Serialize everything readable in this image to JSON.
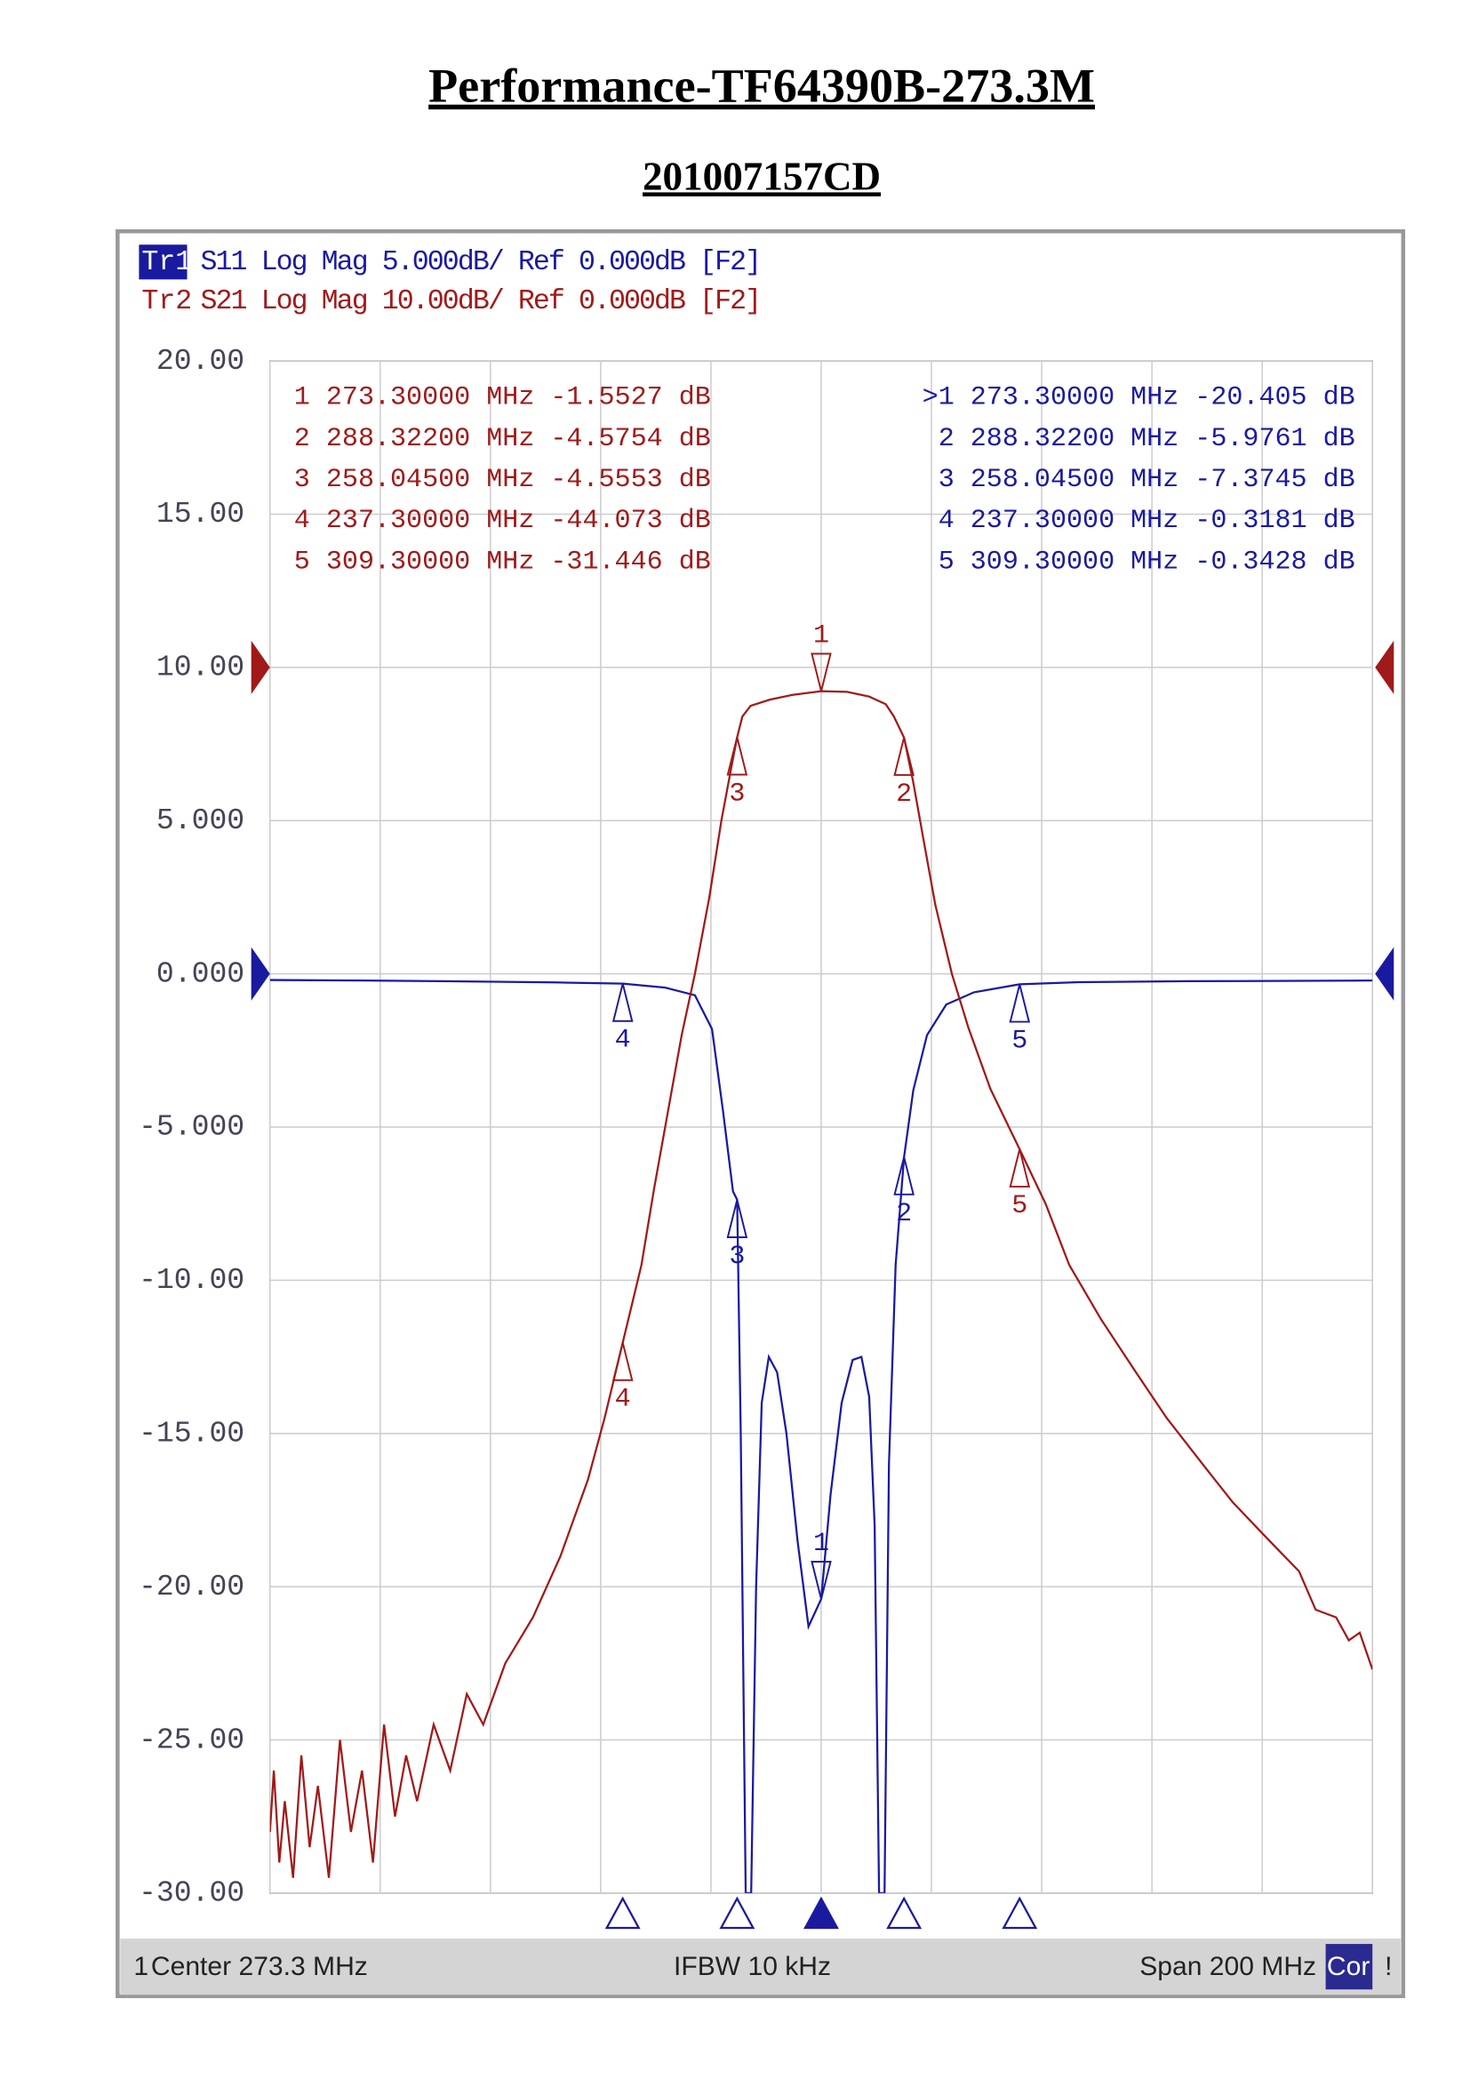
{
  "chart_data": {
    "type": "line",
    "title": "Performance-TF64390B-273.3M",
    "subtitle": "201007157CD",
    "xlim": [
      173.3,
      373.3
    ],
    "xticks": [
      173.3,
      193.3,
      213.3,
      233.3,
      253.3,
      273.3,
      293.3,
      313.3,
      333.3,
      353.3,
      373.3
    ],
    "ylim": [
      -30,
      20
    ],
    "yticks": [
      {
        "value": 20,
        "label": "20.00"
      },
      {
        "value": 15,
        "label": "15.00"
      },
      {
        "value": 10,
        "label": "10.00"
      },
      {
        "value": 5,
        "label": "5.000"
      },
      {
        "value": 0,
        "label": "0.000"
      },
      {
        "value": -5,
        "label": "-5.000"
      },
      {
        "value": -10,
        "label": "-10.00"
      },
      {
        "value": -15,
        "label": "-15.00"
      },
      {
        "value": -20,
        "label": "-20.00"
      },
      {
        "value": -25,
        "label": "-25.00"
      },
      {
        "value": -30,
        "label": "-30.00"
      }
    ],
    "y2lim": [
      -80,
      20
    ],
    "grid": true,
    "series": [
      {
        "name": "Tr1",
        "format": "S11 Log Mag 5.000dB/ Ref 0.000dB [F2]",
        "color": "#1a1aa0",
        "ref": 0,
        "x": [
          173.3,
          190,
          210,
          225,
          237.3,
          245,
          250.4,
          253.5,
          255.5,
          257.3,
          258.05,
          258.7,
          259.6,
          260.6,
          261.5,
          262.5,
          263.8,
          265.3,
          267,
          269,
          271,
          273.3,
          275,
          277,
          279,
          280.6,
          282,
          283,
          283.8,
          284.8,
          285.6,
          286.8,
          288.32,
          290,
          292.5,
          296,
          301,
          309.3,
          320,
          340,
          373.3
        ],
        "values": [
          -0.2,
          -0.22,
          -0.25,
          -0.28,
          -0.32,
          -0.45,
          -0.7,
          -1.8,
          -4.5,
          -7.1,
          -7.37,
          -15,
          -30,
          -30,
          -20,
          -14,
          -12.5,
          -13,
          -15,
          -18.5,
          -21.3,
          -20.4,
          -17,
          -14,
          -12.6,
          -12.5,
          -13.8,
          -18,
          -30,
          -30,
          -16,
          -9.5,
          -5.98,
          -3.8,
          -2,
          -1,
          -0.6,
          -0.34,
          -0.27,
          -0.24,
          -0.22
        ],
        "markers": {
          "labels": [
            "1",
            "2",
            "3",
            "4",
            "5"
          ],
          "x": [
            273.3,
            288.322,
            258.045,
            237.3,
            309.3
          ],
          "values": [
            -20.405,
            -5.9761,
            -7.3745,
            -0.3181,
            -0.3428
          ]
        },
        "readouts": [
          ">1 273.30000 MHz -20.405 dB",
          "2 288.32200 MHz -5.9761 dB",
          "3 258.04500 MHz -7.3745 dB",
          "4 237.30000 MHz -0.3181 dB",
          "5 309.30000 MHz -0.3428 dB"
        ]
      },
      {
        "name": "Tr2",
        "format": "S21 Log Mag 10.00dB/ Ref 0.000dB [F2]",
        "color": "#a01a1a",
        "axis": "y2",
        "ref": 0,
        "x": [
          173.3,
          174,
          175,
          176,
          177.5,
          179,
          180.5,
          182,
          184,
          186,
          188,
          190,
          192,
          194,
          196,
          198,
          200,
          203,
          206,
          209,
          212,
          216,
          221,
          226,
          231,
          234,
          237.3,
          240.7,
          243,
          245.5,
          248,
          250.4,
          253,
          255.2,
          257,
          258.05,
          259,
          260.5,
          264,
          268,
          273.3,
          278,
          282,
          285,
          286.5,
          288.32,
          290,
          292,
          294,
          297,
          300,
          304,
          309.3,
          314,
          318.3,
          324,
          330.4,
          336,
          342.5,
          348,
          354.6,
          360,
          363,
          366.7,
          369,
          371,
          373.3
        ],
        "values": [
          -76,
          -72,
          -78,
          -74,
          -79,
          -71,
          -77,
          -73,
          -79,
          -70,
          -76,
          -72,
          -78,
          -69,
          -75,
          -71,
          -74,
          -69,
          -72,
          -67,
          -69,
          -65,
          -62,
          -58,
          -53,
          -49,
          -44.07,
          -39,
          -34,
          -29,
          -24,
          -20,
          -15,
          -10,
          -6.5,
          -4.56,
          -3.2,
          -2.5,
          -2.1,
          -1.8,
          -1.55,
          -1.6,
          -1.9,
          -2.4,
          -3.2,
          -4.58,
          -7.5,
          -11.5,
          -15.5,
          -20,
          -23.5,
          -27.5,
          -31.45,
          -35,
          -39,
          -42.5,
          -46,
          -49,
          -52,
          -54.5,
          -57,
          -59,
          -61.5,
          -62,
          -63.5,
          -63,
          -65.4
        ],
        "markers": {
          "labels": [
            "1",
            "2",
            "3",
            "4",
            "5"
          ],
          "x": [
            273.3,
            288.322,
            258.045,
            237.3,
            309.3
          ],
          "values": [
            -1.5527,
            -4.5754,
            -4.5553,
            -44.073,
            -31.446
          ]
        },
        "readouts": [
          "1 273.30000 MHz -1.5527 dB",
          "2 288.32200 MHz -4.5754 dB",
          "3 258.04500 MHz -4.5553 dB",
          "4 237.30000 MHz -44.073 dB",
          "5 309.30000 MHz -31.446 dB"
        ]
      }
    ],
    "footer": {
      "channel": "1",
      "center": "Center 273.3 MHz",
      "ifbw": "IFBW 10 kHz",
      "span": "Span 200 MHz",
      "cor": "Cor",
      "flag": "!"
    }
  }
}
